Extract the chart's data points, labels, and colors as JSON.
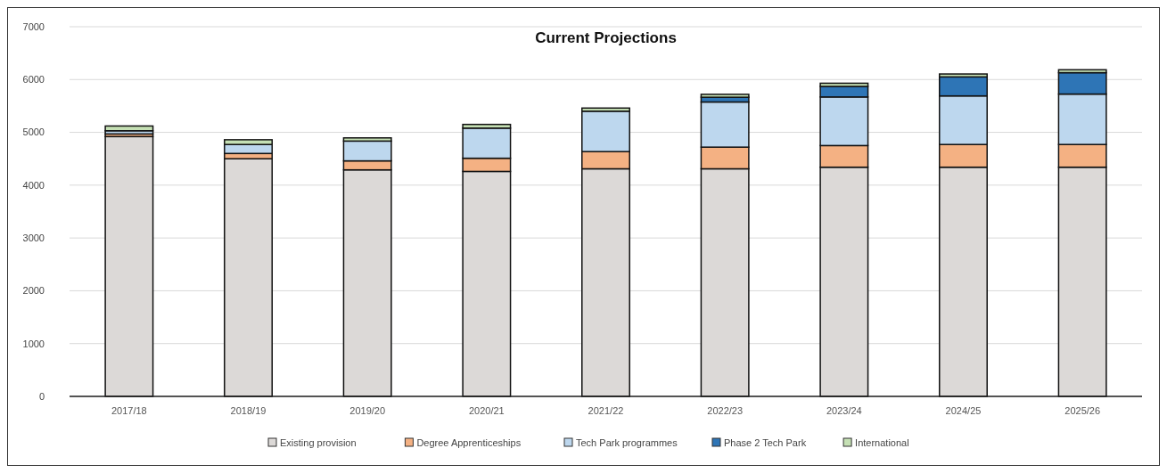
{
  "chart_data": {
    "type": "bar",
    "title": "Current Projections",
    "stacked": true,
    "grid": "y",
    "legend": "bottom",
    "categories": [
      "2017/18",
      "2018/19",
      "2019/20",
      "2020/21",
      "2021/22",
      "2022/23",
      "2023/24",
      "2024/25",
      "2025/26"
    ],
    "ylim": [
      0,
      7000
    ],
    "yticks": [
      0,
      1000,
      2000,
      3000,
      4000,
      5000,
      6000,
      7000
    ],
    "series": [
      {
        "name": "Existing provision",
        "color": "#dcd9d7",
        "values": [
          4920,
          4500,
          4290,
          4260,
          4310,
          4310,
          4340,
          4340,
          4340
        ]
      },
      {
        "name": "Degree Apprenticeships",
        "color": "#f4b183",
        "values": [
          50,
          100,
          170,
          250,
          325,
          410,
          410,
          430,
          430
        ]
      },
      {
        "name": "Tech Park programmes",
        "color": "#bdd7ee",
        "values": [
          60,
          170,
          375,
          570,
          765,
          855,
          920,
          920,
          955
        ]
      },
      {
        "name": "Phase 2 Tech Park",
        "color": "#2e75b6",
        "values": [
          0,
          0,
          0,
          0,
          0,
          90,
          200,
          360,
          405
        ]
      },
      {
        "name": "International",
        "color": "#c5e0b4",
        "values": [
          90,
          90,
          60,
          70,
          60,
          55,
          60,
          55,
          55
        ]
      }
    ]
  }
}
